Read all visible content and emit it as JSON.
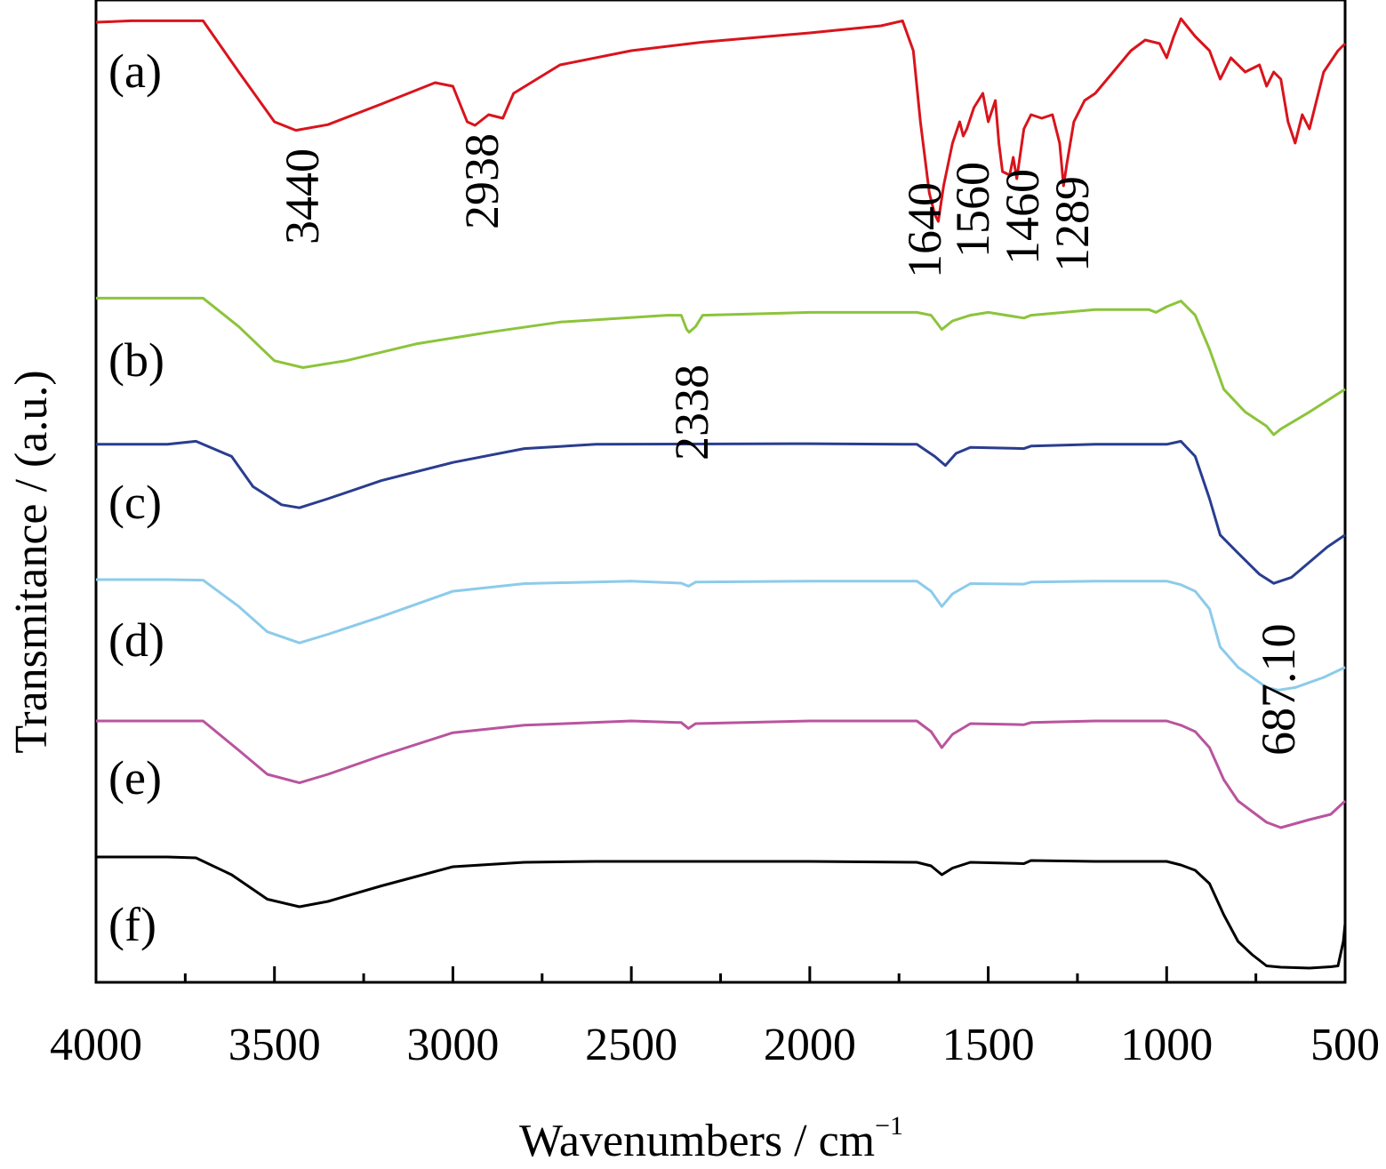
{
  "chart_data": {
    "type": "line",
    "title": "",
    "xlabel": "Wavenumbers / cm",
    "xlabel_superscript": "−1",
    "ylabel": "Transmitance / (a.u.)",
    "xlim": [
      4000,
      500
    ],
    "x_reversed": true,
    "y_ticks_shown": false,
    "grid": false,
    "x_ticks": [
      4000,
      3500,
      3000,
      2500,
      2000,
      1500,
      1000,
      500
    ],
    "x_tick_labels": [
      "4000",
      "3500",
      "3000",
      "2500",
      "2000",
      "1500",
      "1000",
      "500"
    ],
    "series": [
      {
        "name": "(a)",
        "color": "#d9141c",
        "points": [
          [
            4000,
            99
          ],
          [
            3900,
            99.2
          ],
          [
            3700,
            99.2
          ],
          [
            3600,
            92
          ],
          [
            3500,
            85
          ],
          [
            3440,
            83.8
          ],
          [
            3350,
            84.6
          ],
          [
            3200,
            87.5
          ],
          [
            3050,
            90.5
          ],
          [
            3000,
            90
          ],
          [
            2960,
            85
          ],
          [
            2938,
            84.5
          ],
          [
            2900,
            86
          ],
          [
            2860,
            85.5
          ],
          [
            2830,
            89
          ],
          [
            2700,
            93
          ],
          [
            2500,
            95
          ],
          [
            2300,
            96.2
          ],
          [
            2000,
            97.5
          ],
          [
            1800,
            98.5
          ],
          [
            1740,
            99.2
          ],
          [
            1710,
            95
          ],
          [
            1690,
            85
          ],
          [
            1665,
            75
          ],
          [
            1650,
            72
          ],
          [
            1640,
            71
          ],
          [
            1625,
            76
          ],
          [
            1600,
            82
          ],
          [
            1580,
            85
          ],
          [
            1570,
            83
          ],
          [
            1560,
            84
          ],
          [
            1540,
            87
          ],
          [
            1515,
            89
          ],
          [
            1500,
            85
          ],
          [
            1480,
            88
          ],
          [
            1470,
            82
          ],
          [
            1460,
            78
          ],
          [
            1440,
            77.5
          ],
          [
            1430,
            80
          ],
          [
            1420,
            77
          ],
          [
            1400,
            84
          ],
          [
            1380,
            86
          ],
          [
            1350,
            85.5
          ],
          [
            1320,
            86
          ],
          [
            1300,
            82
          ],
          [
            1289,
            76
          ],
          [
            1280,
            79
          ],
          [
            1260,
            85
          ],
          [
            1230,
            88
          ],
          [
            1200,
            89
          ],
          [
            1150,
            92
          ],
          [
            1100,
            95
          ],
          [
            1060,
            96.5
          ],
          [
            1020,
            96
          ],
          [
            1000,
            94
          ],
          [
            980,
            97
          ],
          [
            960,
            99.5
          ],
          [
            920,
            97
          ],
          [
            880,
            95
          ],
          [
            850,
            91
          ],
          [
            820,
            94
          ],
          [
            780,
            92
          ],
          [
            740,
            93
          ],
          [
            720,
            90
          ],
          [
            700,
            92
          ],
          [
            680,
            91
          ],
          [
            660,
            85
          ],
          [
            640,
            82
          ],
          [
            620,
            86
          ],
          [
            600,
            84
          ],
          [
            560,
            92
          ],
          [
            520,
            95
          ],
          [
            500,
            96
          ]
        ]
      },
      {
        "name": "(b)",
        "color": "#8cc43b",
        "points": [
          [
            4000,
            99
          ],
          [
            3700,
            99
          ],
          [
            3600,
            94
          ],
          [
            3500,
            88
          ],
          [
            3420,
            86.8
          ],
          [
            3300,
            88
          ],
          [
            3100,
            91
          ],
          [
            2900,
            93
          ],
          [
            2700,
            94.8
          ],
          [
            2400,
            96
          ],
          [
            2360,
            96
          ],
          [
            2345,
            93.5
          ],
          [
            2338,
            93
          ],
          [
            2320,
            94
          ],
          [
            2300,
            96
          ],
          [
            2000,
            96.5
          ],
          [
            1700,
            96.5
          ],
          [
            1660,
            96
          ],
          [
            1630,
            93.5
          ],
          [
            1600,
            95
          ],
          [
            1550,
            96
          ],
          [
            1500,
            96.5
          ],
          [
            1400,
            95.5
          ],
          [
            1380,
            96
          ],
          [
            1200,
            97
          ],
          [
            1050,
            97
          ],
          [
            1030,
            96.5
          ],
          [
            1000,
            97.5
          ],
          [
            960,
            98.5
          ],
          [
            920,
            96
          ],
          [
            880,
            90
          ],
          [
            840,
            83
          ],
          [
            780,
            79
          ],
          [
            720,
            76.5
          ],
          [
            700,
            75
          ],
          [
            680,
            76
          ],
          [
            600,
            79
          ],
          [
            500,
            83
          ]
        ]
      },
      {
        "name": "(c)",
        "color": "#2a3d8f",
        "points": [
          [
            4000,
            99
          ],
          [
            3800,
            99
          ],
          [
            3720,
            99.5
          ],
          [
            3620,
            97
          ],
          [
            3560,
            92
          ],
          [
            3480,
            89
          ],
          [
            3430,
            88.5
          ],
          [
            3350,
            90
          ],
          [
            3200,
            93
          ],
          [
            3000,
            96
          ],
          [
            2800,
            98.3
          ],
          [
            2600,
            99
          ],
          [
            2000,
            99.1
          ],
          [
            1700,
            99
          ],
          [
            1650,
            97
          ],
          [
            1620,
            95.5
          ],
          [
            1590,
            97.5
          ],
          [
            1550,
            98.5
          ],
          [
            1400,
            98.3
          ],
          [
            1380,
            98.7
          ],
          [
            1200,
            99
          ],
          [
            1000,
            99
          ],
          [
            960,
            99.5
          ],
          [
            920,
            97
          ],
          [
            880,
            90
          ],
          [
            850,
            84
          ],
          [
            800,
            81
          ],
          [
            740,
            77.5
          ],
          [
            700,
            76
          ],
          [
            650,
            77
          ],
          [
            550,
            82
          ],
          [
            500,
            84
          ]
        ]
      },
      {
        "name": "(d)",
        "color": "#8ccbea",
        "points": [
          [
            4000,
            99.3
          ],
          [
            3800,
            99.3
          ],
          [
            3700,
            99.2
          ],
          [
            3600,
            94
          ],
          [
            3520,
            89
          ],
          [
            3430,
            86.8
          ],
          [
            3350,
            88.5
          ],
          [
            3200,
            92
          ],
          [
            3000,
            97
          ],
          [
            2800,
            98.5
          ],
          [
            2500,
            99
          ],
          [
            2360,
            98.6
          ],
          [
            2340,
            98
          ],
          [
            2320,
            98.8
          ],
          [
            2000,
            99
          ],
          [
            1700,
            99
          ],
          [
            1660,
            97
          ],
          [
            1630,
            94
          ],
          [
            1600,
            96.5
          ],
          [
            1550,
            98.5
          ],
          [
            1400,
            98.4
          ],
          [
            1380,
            98.8
          ],
          [
            1200,
            99
          ],
          [
            1000,
            99
          ],
          [
            960,
            98.3
          ],
          [
            920,
            97
          ],
          [
            880,
            93.5
          ],
          [
            850,
            86
          ],
          [
            800,
            82
          ],
          [
            760,
            80
          ],
          [
            720,
            78
          ],
          [
            687,
            77.5
          ],
          [
            640,
            78
          ],
          [
            560,
            80
          ],
          [
            500,
            82
          ]
        ]
      },
      {
        "name": "(e)",
        "color": "#b9549e",
        "points": [
          [
            4000,
            99
          ],
          [
            3800,
            99
          ],
          [
            3700,
            99
          ],
          [
            3600,
            93.5
          ],
          [
            3520,
            89
          ],
          [
            3430,
            87.4
          ],
          [
            3350,
            89
          ],
          [
            3200,
            92.5
          ],
          [
            3000,
            96.8
          ],
          [
            2800,
            98.2
          ],
          [
            2500,
            99
          ],
          [
            2360,
            98.7
          ],
          [
            2340,
            97.6
          ],
          [
            2320,
            98.5
          ],
          [
            2000,
            99
          ],
          [
            1700,
            99
          ],
          [
            1660,
            97
          ],
          [
            1630,
            94
          ],
          [
            1600,
            96.5
          ],
          [
            1550,
            98.5
          ],
          [
            1400,
            98.3
          ],
          [
            1380,
            98.7
          ],
          [
            1200,
            99
          ],
          [
            1000,
            99
          ],
          [
            960,
            98.2
          ],
          [
            920,
            97
          ],
          [
            880,
            94
          ],
          [
            840,
            88
          ],
          [
            800,
            84
          ],
          [
            760,
            82
          ],
          [
            720,
            80
          ],
          [
            680,
            79
          ],
          [
            600,
            80.5
          ],
          [
            540,
            81.5
          ],
          [
            500,
            84
          ]
        ]
      },
      {
        "name": "(f)",
        "color": "#000000",
        "points": [
          [
            4000,
            99
          ],
          [
            3800,
            99
          ],
          [
            3720,
            98.8
          ],
          [
            3620,
            95
          ],
          [
            3520,
            89.5
          ],
          [
            3430,
            87.8
          ],
          [
            3350,
            89
          ],
          [
            3200,
            92.5
          ],
          [
            3000,
            96.8
          ],
          [
            2800,
            97.8
          ],
          [
            2600,
            98
          ],
          [
            2000,
            98
          ],
          [
            1700,
            97.8
          ],
          [
            1660,
            97
          ],
          [
            1630,
            95
          ],
          [
            1600,
            96.5
          ],
          [
            1550,
            97.8
          ],
          [
            1400,
            97.5
          ],
          [
            1380,
            98.2
          ],
          [
            1200,
            98
          ],
          [
            1000,
            98
          ],
          [
            960,
            97.2
          ],
          [
            920,
            96
          ],
          [
            880,
            93
          ],
          [
            840,
            86
          ],
          [
            800,
            80
          ],
          [
            760,
            77
          ],
          [
            720,
            74.5
          ],
          [
            680,
            74.2
          ],
          [
            600,
            74
          ],
          [
            540,
            74.3
          ],
          [
            520,
            74.5
          ],
          [
            505,
            80
          ],
          [
            500,
            84
          ]
        ]
      }
    ],
    "peak_annotations": [
      "3440",
      "2938",
      "1640",
      "1560",
      "1460",
      "1289",
      "2338",
      "687.10"
    ]
  }
}
